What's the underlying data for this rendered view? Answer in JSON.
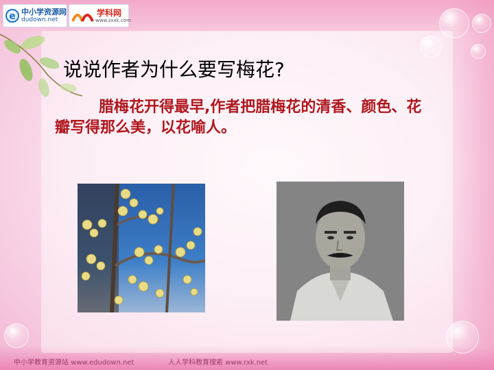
{
  "logos": {
    "site1_name": "中小学资源网",
    "site1_domain": "dudown.net",
    "site2_name": "学科网",
    "site2_domain": "www.zxxk.com"
  },
  "slide": {
    "title": "说说作者为什么要写梅花?",
    "body_line1": "腊梅花开得最早,作者把腊梅花的清香、颜色、花瓣写得那么美，以花喻人。"
  },
  "footer": {
    "left": "中小学教育资源站 www.edudown.net",
    "right": "人人学科教育搜索 www.rxk.net"
  },
  "colors": {
    "title": "#000000",
    "body": "#b0161c",
    "background": "#fbe3ef"
  },
  "icons": {
    "site1_logo": "e-globe-icon",
    "site2_logo": "double-arc-icon"
  }
}
